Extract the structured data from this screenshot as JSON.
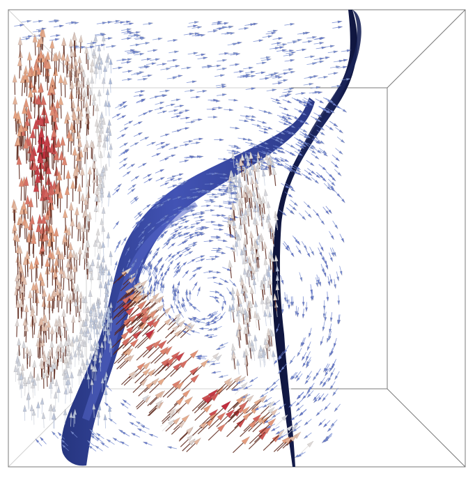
{
  "scene": {
    "kind": "3d-flow-visualization",
    "description_elements": [
      "bounding-box",
      "velocity-glyph-arrows",
      "blue-isosurface-sheets"
    ],
    "colormap": {
      "low": "#3b4cc0",
      "mid_low": "#8fa8d8",
      "mid": "#dddcdc",
      "mid_high": "#e5a481",
      "high": "#b40426"
    },
    "box_color": "#7a7a7a",
    "surface_colors": {
      "front_sheet": "#2f3f9a",
      "front_sheet_highlight": "#4a5cc0",
      "back_sheet": "#141c48"
    },
    "background": "#ffffff"
  }
}
